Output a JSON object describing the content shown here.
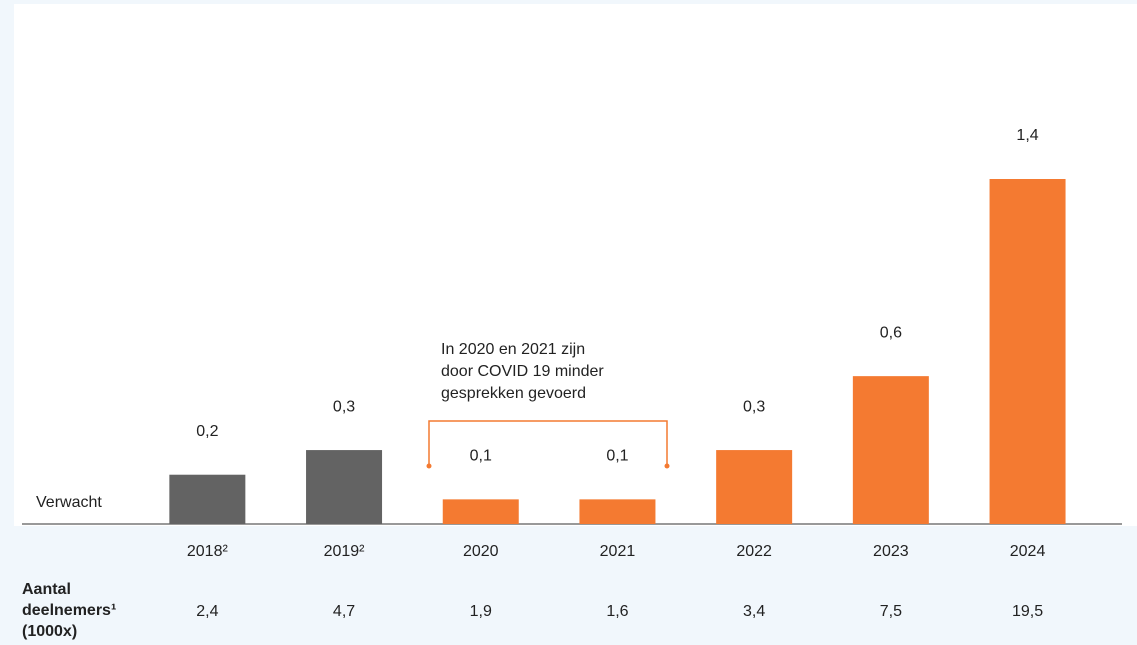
{
  "chart_data": {
    "type": "bar",
    "categories": [
      "2018²",
      "2019²",
      "2020",
      "2021",
      "2022",
      "2023",
      "2024"
    ],
    "values": [
      0.2,
      0.3,
      0.1,
      0.1,
      0.3,
      0.6,
      1.4
    ],
    "value_labels": [
      "0,2",
      "0,3",
      "0,1",
      "0,1",
      "0,3",
      "0,6",
      "1,4"
    ],
    "colors": [
      "#636363",
      "#636363",
      "#f47a31",
      "#f47a31",
      "#f47a31",
      "#f47a31",
      "#f47a31"
    ],
    "ylim": [
      0,
      1.4
    ],
    "legend_text": "Verwacht",
    "annotation": [
      "In 2020 en 2021 zijn",
      "door COVID 19 minder",
      "gesprekken gevoerd"
    ],
    "participants": {
      "label": [
        "Aantal",
        "deelnemers¹",
        "(1000x)"
      ],
      "values": [
        "2,4",
        "4,7",
        "1,9",
        "1,6",
        "3,4",
        "7,5",
        "19,5"
      ]
    }
  }
}
